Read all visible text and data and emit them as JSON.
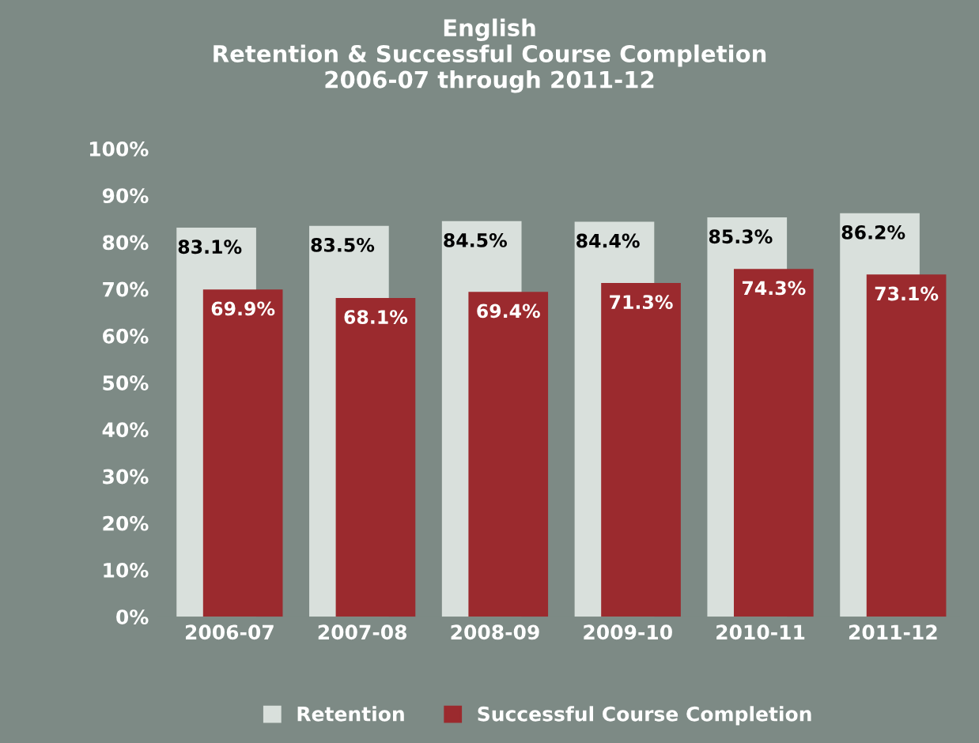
{
  "chart_data": {
    "type": "bar",
    "title": "English\nRetention & Successful Course Completion\n2006-07 through 2011-12",
    "categories": [
      "2006-07",
      "2007-08",
      "2008-09",
      "2009-10",
      "2010-11",
      "2011-12"
    ],
    "series": [
      {
        "name": "Retention",
        "color": "#d9e0dc",
        "values": [
          83.1,
          83.5,
          84.5,
          84.4,
          85.3,
          86.2
        ],
        "value_labels": [
          "83.1%",
          "83.5%",
          "84.5%",
          "84.4%",
          "85.3%",
          "86.2%"
        ]
      },
      {
        "name": "Successful Course Completion",
        "color": "#9b2a2e",
        "values": [
          69.9,
          68.1,
          69.4,
          71.3,
          74.3,
          73.1
        ],
        "value_labels": [
          "69.9%",
          "68.1%",
          "69.4%",
          "71.3%",
          "74.3%",
          "73.1%"
        ]
      }
    ],
    "ylim": [
      0,
      100
    ],
    "yticks": [
      {
        "value": 0,
        "label": "0%"
      },
      {
        "value": 10,
        "label": "10%"
      },
      {
        "value": 20,
        "label": "20%"
      },
      {
        "value": 30,
        "label": "30%"
      },
      {
        "value": 40,
        "label": "40%"
      },
      {
        "value": 50,
        "label": "50%"
      },
      {
        "value": 60,
        "label": "60%"
      },
      {
        "value": 70,
        "label": "70%"
      },
      {
        "value": 80,
        "label": "80%"
      },
      {
        "value": 90,
        "label": "90%"
      },
      {
        "value": 100,
        "label": "100%"
      }
    ],
    "grid": false,
    "legend": "bottom"
  }
}
